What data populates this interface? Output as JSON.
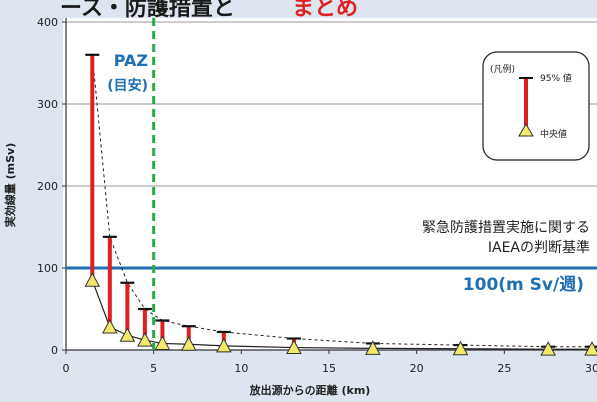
{
  "header": {
    "partial_title": "ース・防護措置と",
    "partial_title_red": "まとめ"
  },
  "chart_data": {
    "type": "range",
    "xlabel": "放出源からの距離 (km)",
    "ylabel": "実効線量 (mSv)",
    "xlim": [
      0,
      30
    ],
    "ylim": [
      0,
      400
    ],
    "xticks": [
      0,
      5,
      10,
      15,
      20,
      25,
      30
    ],
    "yticks": [
      0,
      100,
      200,
      300,
      400
    ],
    "distances_km": [
      1.5,
      2.5,
      3.5,
      4.5,
      5.5,
      7,
      9,
      13,
      17.5,
      22.5,
      27.5,
      30
    ],
    "p95": [
      360,
      138,
      82,
      50,
      36,
      29,
      22,
      14,
      8,
      6,
      4,
      4
    ],
    "median": [
      85,
      28,
      18,
      12,
      8,
      7,
      5,
      3,
      2,
      1.5,
      1,
      1
    ],
    "legend": {
      "heading": "(凡例)",
      "top_label": "95% 値",
      "bottom_label": "中央値"
    },
    "paz": {
      "x_km": 5,
      "label": "PAZ",
      "sublabel": "(目安)"
    },
    "threshold": {
      "value": 100,
      "label_line1": "緊急防護措置実施に関する",
      "label_line2": "IAEAの判断基準",
      "value_label": "100(m Sv/週)"
    },
    "colors": {
      "threshold": "#1f6fb5",
      "paz": "#2aa84a",
      "range_bar": "#e02020",
      "median_marker": "#f2e96b",
      "title_red": "#e02020"
    }
  }
}
